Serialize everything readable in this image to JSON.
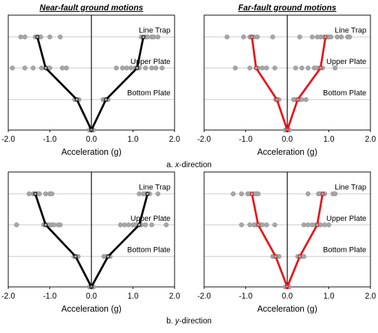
{
  "columns": [
    "Near-fault ground motions",
    "Far-fault ground motions"
  ],
  "captions": [
    {
      "prefix": "a. ",
      "italic": "x",
      "suffix": "-direction"
    },
    {
      "prefix": "b. ",
      "italic": "y",
      "suffix": "-direction"
    }
  ],
  "colors": {
    "near": "#000000",
    "far": "#e8161b",
    "scatter": "#a6a6a6",
    "grid": "#c8c8c8",
    "axis": "#000000"
  },
  "chart_data": [
    {
      "type": "scatter",
      "panel": "near-x",
      "xlabel": "Acceleration (g)",
      "xlim": [
        -2,
        2
      ],
      "xticks": [
        "-2.0",
        "-1.0",
        "0.0",
        "1.0",
        "2.0"
      ],
      "xtick_values": [
        -2,
        -1,
        0,
        1,
        2
      ],
      "levels": [
        "Line Trap",
        "Upper Plate",
        "Bottom Plate"
      ],
      "mean_line": {
        "neg_x": [
          0,
          -0.35,
          -1.1,
          -1.3
        ],
        "pos_x": [
          0,
          0.35,
          1.1,
          1.25
        ],
        "level_index": [
          0,
          1,
          2,
          3
        ]
      },
      "points": {
        "Line Trap": [
          -1.7,
          -1.6,
          -1.35,
          -1.3,
          -1.25,
          -1.22,
          -1.0,
          -0.75,
          1.2,
          1.3,
          1.35,
          1.45,
          1.5,
          1.6
        ],
        "Upper Plate": [
          -1.9,
          -1.6,
          -1.4,
          -1.2,
          -1.1,
          -1.05,
          -1.0,
          -0.7,
          -0.6,
          0.6,
          0.75,
          0.85,
          0.95,
          1.05,
          1.1,
          1.15,
          1.3,
          1.45,
          1.55,
          1.7
        ],
        "Bottom Plate": [
          -0.4,
          -0.35,
          -0.3,
          0.28,
          0.3,
          0.33,
          0.36,
          0.4
        ],
        "Base": [
          -0.05,
          0,
          0.05
        ]
      }
    },
    {
      "type": "scatter",
      "panel": "far-x",
      "xlabel": "Acceleration (g)",
      "xlim": [
        -2,
        2
      ],
      "xticks": [
        "-2.0",
        "-1.0",
        "0.0",
        "1.0",
        "2.0"
      ],
      "xtick_values": [
        -2,
        -1,
        0,
        1,
        2
      ],
      "levels": [
        "Line Trap",
        "Upper Plate",
        "Bottom Plate"
      ],
      "mean_line": {
        "neg_x": [
          0,
          -0.25,
          -0.75,
          -0.85
        ],
        "pos_x": [
          0,
          0.25,
          0.8,
          0.92
        ],
        "level_index": [
          0,
          1,
          2,
          3
        ]
      },
      "points": {
        "Line Trap": [
          -1.45,
          -1.05,
          -0.9,
          -0.88,
          -0.85,
          -0.8,
          -0.72,
          -0.35,
          0.3,
          0.6,
          0.72,
          0.8,
          0.88,
          0.95,
          1.0,
          1.05,
          1.2,
          1.3,
          1.45,
          1.5
        ],
        "Upper Plate": [
          -1.25,
          -0.9,
          -0.75,
          -0.7,
          -0.6,
          -0.5,
          -0.3,
          0.2,
          0.35,
          0.5,
          0.65,
          0.72,
          0.78,
          0.85,
          1.15
        ],
        "Bottom Plate": [
          -0.28,
          -0.25,
          -0.2,
          0.15,
          0.2,
          0.25,
          0.3,
          0.35,
          0.45
        ],
        "Base": [
          -0.05,
          0,
          0.05
        ]
      }
    },
    {
      "type": "scatter",
      "panel": "near-y",
      "xlabel": "Acceleration (g)",
      "xlim": [
        -2,
        2
      ],
      "xticks": [
        "-2.0",
        "-1.0",
        "0.0",
        "1.0",
        "2.0"
      ],
      "xtick_values": [
        -2,
        -1,
        0,
        1,
        2
      ],
      "levels": [
        "Line Trap",
        "Upper Plate",
        "Bottom Plate"
      ],
      "mean_line": {
        "neg_x": [
          0,
          -0.38,
          -1.1,
          -1.35
        ],
        "pos_x": [
          0,
          0.4,
          1.15,
          1.35
        ],
        "level_index": [
          0,
          1,
          2,
          3
        ]
      },
      "points": {
        "Line Trap": [
          -1.5,
          -1.4,
          -1.35,
          -1.3,
          -1.25,
          -1.1,
          -1.0,
          -0.95,
          1.15,
          1.25,
          1.3,
          1.35,
          1.4,
          1.6
        ],
        "Upper Plate": [
          -1.8,
          -1.15,
          -1.1,
          -1.05,
          -1.0,
          -0.95,
          -0.9,
          -0.8,
          -0.75,
          0.7,
          0.8,
          0.9,
          1.0,
          1.05,
          1.15,
          1.2,
          1.3,
          1.45,
          1.8
        ],
        "Bottom Plate": [
          -0.42,
          -0.38,
          -0.32,
          0.3,
          0.35,
          0.4,
          0.45
        ],
        "Base": [
          -0.05,
          0,
          0.05
        ]
      }
    },
    {
      "type": "scatter",
      "panel": "far-y",
      "xlabel": "Acceleration (g)",
      "xlim": [
        -2,
        2
      ],
      "xticks": [
        "-2.0",
        "-1.0",
        "0.0",
        "1.0",
        "2.0"
      ],
      "xtick_values": [
        -2,
        -1,
        0,
        1,
        2
      ],
      "levels": [
        "Line Trap",
        "Upper Plate",
        "Bottom Plate"
      ],
      "mean_line": {
        "neg_x": [
          0,
          -0.28,
          -0.7,
          -0.85
        ],
        "pos_x": [
          0,
          0.3,
          0.72,
          0.85
        ],
        "level_index": [
          0,
          1,
          2,
          3
        ]
      },
      "points": {
        "Line Trap": [
          -1.3,
          -1.1,
          -0.95,
          -0.9,
          -0.85,
          -0.8,
          -0.75,
          -0.7,
          0.5,
          0.75,
          0.8,
          0.85,
          0.9,
          1.1,
          1.15
        ],
        "Upper Plate": [
          -1.1,
          -0.9,
          -0.8,
          -0.75,
          -0.7,
          -0.65,
          -0.6,
          -0.5,
          -0.3,
          0.4,
          0.5,
          0.6,
          0.68,
          0.75,
          0.8,
          0.9,
          1.0
        ],
        "Bottom Plate": [
          -0.35,
          -0.3,
          -0.25,
          -0.2,
          0.25,
          0.3,
          0.35,
          0.4
        ],
        "Base": [
          -0.05,
          0,
          0.05
        ]
      }
    }
  ]
}
